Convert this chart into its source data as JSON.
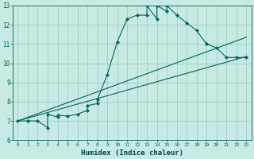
{
  "bg_color": "#c8eae4",
  "grid_color": "#a0ccc4",
  "line_color": "#006655",
  "xlabel": "Humidex (Indice chaleur)",
  "xlim": [
    -0.5,
    23.5
  ],
  "ylim": [
    6,
    13
  ],
  "yticks": [
    6,
    7,
    8,
    9,
    10,
    11,
    12,
    13
  ],
  "xticks": [
    0,
    1,
    2,
    3,
    4,
    5,
    6,
    7,
    8,
    9,
    10,
    11,
    12,
    13,
    14,
    15,
    16,
    17,
    18,
    19,
    20,
    21,
    22,
    23
  ],
  "main_x": [
    0,
    1,
    2,
    3,
    3,
    4,
    4,
    5,
    6,
    7,
    7,
    8,
    8,
    9,
    10,
    11,
    12,
    13,
    13,
    14,
    14,
    15,
    15,
    16,
    17,
    18,
    19,
    19,
    20,
    21,
    22,
    23
  ],
  "main_y": [
    7.0,
    7.0,
    7.0,
    6.65,
    7.35,
    7.2,
    7.3,
    7.25,
    7.35,
    7.55,
    7.8,
    7.9,
    8.1,
    9.4,
    11.1,
    12.3,
    12.5,
    12.5,
    13.0,
    12.3,
    13.0,
    12.7,
    13.0,
    12.5,
    12.1,
    11.7,
    11.0,
    11.0,
    10.8,
    10.3,
    10.3,
    10.3
  ],
  "line1_x": [
    0,
    23
  ],
  "line1_y": [
    7.0,
    10.35
  ],
  "line2_x": [
    0,
    23
  ],
  "line2_y": [
    7.0,
    11.35
  ],
  "marker": "D",
  "marker_size": 2.2,
  "lw": 0.8
}
